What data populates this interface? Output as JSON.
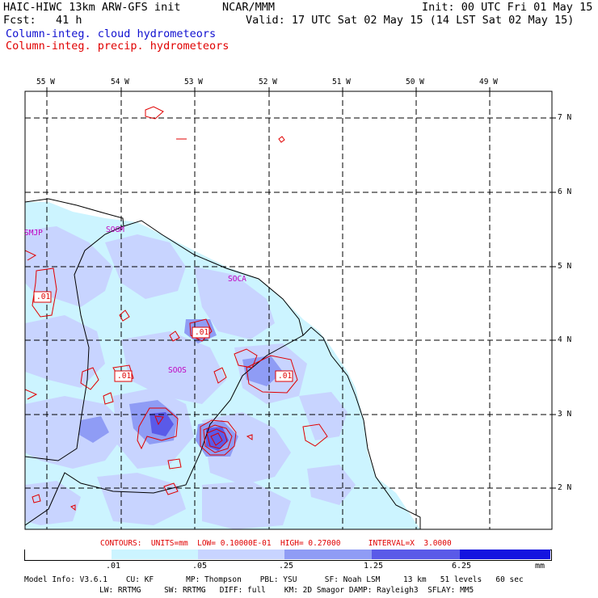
{
  "header": {
    "title": "HAIC-HIWC 13km ARW-GFS init",
    "org": "NCAR/MMM",
    "init": "Init: 00 UTC Fri 01 May 15",
    "fcst": "Fcst:   41 h",
    "valid": "Valid: 17 UTC Sat 02 May 15 (14 LST Sat 02 May 15)",
    "field_cloud": "Column-integ. cloud hydrometeors",
    "field_precip": "Column-integ. precip. hydrometeors"
  },
  "lon_labels": [
    "55 W",
    "54 W",
    "53 W",
    "52 W",
    "51 W",
    "50 W",
    "49 W"
  ],
  "lat_labels": [
    "7 N",
    "6 N",
    "5 N",
    "4 N",
    "3 N",
    "2 N"
  ],
  "stations": [
    "SMJP",
    "SOGM",
    "SOCA",
    "SOOS"
  ],
  "contour_labels": [
    ".01",
    ".01",
    ".01",
    ".01"
  ],
  "contours_line": "CONTOURS:  UNITS=mm  LOW= 0.10000E-01  HIGH= 0.27000      INTERVAL=X  3.0000",
  "colorbar": {
    "ticks": [
      ".01",
      ".05",
      ".25",
      "1.25",
      "6.25"
    ],
    "unit": "mm",
    "colors": [
      "#ffffff",
      "#ccf4ff",
      "#c8d4ff",
      "#8f9cf5",
      "#5a5ae8",
      "#1414e0"
    ]
  },
  "model_info": {
    "line1": "Model Info: V3.6.1    CU: KF       MP: Thompson    PBL: YSU      SF: Noah LSM     13 km   51 levels   60 sec",
    "line2": "LW: RRTMG     SW: RRTMG   DIFF: full    KM: 2D Smagor DAMP: Rayleigh3  SFLAY: MM5"
  }
}
